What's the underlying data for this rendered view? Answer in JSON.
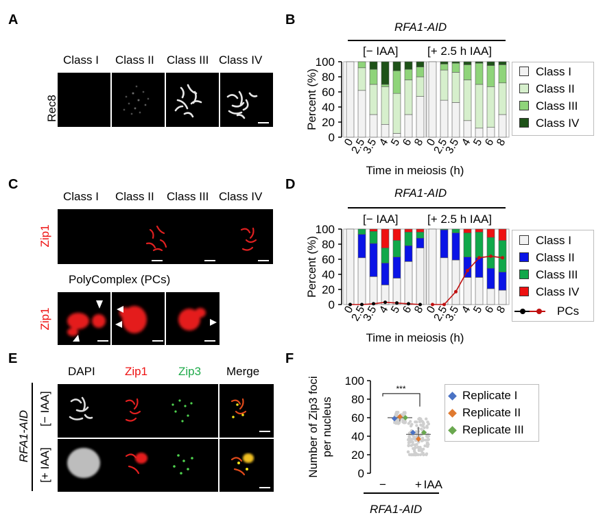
{
  "panels": {
    "A": {
      "letter": "A",
      "columns": [
        "Class I",
        "Class II",
        "Class III",
        "Class IV"
      ],
      "stain": "Rec8"
    },
    "B": {
      "letter": "B",
      "strain": "RFA1-AID",
      "conditions": [
        "[− IAA]",
        "[+ 2.5 h IAA]"
      ]
    },
    "C": {
      "letter": "C",
      "columns": [
        "Class I",
        "Class II",
        "Class III",
        "Class IV"
      ],
      "stain": "Zip1",
      "pc_title": "PolyComplex (PCs)",
      "pc_stain": "Zip1"
    },
    "D": {
      "letter": "D",
      "strain": "RFA1-AID",
      "conditions": [
        "[− IAA]",
        "[+ 2.5 h IAA]"
      ]
    },
    "E": {
      "letter": "E",
      "columns": [
        "DAPI",
        "Zip1",
        "Zip3",
        "Merge"
      ],
      "strain": "RFA1-AID",
      "rows": [
        "[− IAA]",
        "[+ IAA]"
      ]
    },
    "F": {
      "letter": "F",
      "strain": "RFA1-AID",
      "treatment": "IAA",
      "significance": "***"
    }
  },
  "colors": {
    "class1": "#f2f2f2",
    "class2_B": "#d6efcc",
    "class3_B": "#8fd47a",
    "class4_B": "#1e5218",
    "class2_D": "#0a14e6",
    "class3_D": "#10a84a",
    "class4_D": "#ee1111",
    "pcs": "#c01010",
    "zip1": "#ee1c1c",
    "zip3": "#1faa4a",
    "rep1": "#4a72c4",
    "rep2": "#e07a30",
    "rep3": "#6aa84f"
  },
  "chart_data": [
    {
      "id": "B",
      "type": "bar",
      "stacked": true,
      "categories": [
        "0",
        "2.5",
        "3.5",
        "4",
        "5",
        "6",
        "8"
      ],
      "groups": [
        "[− IAA]",
        "[+ 2.5 h IAA]"
      ],
      "xlabel": "Time in meiosis (h)",
      "ylabel": "Percent (%)",
      "ylim": [
        0,
        100
      ],
      "yticks": [
        "0",
        "20",
        "40",
        "60",
        "80",
        "100"
      ],
      "series": [
        {
          "name": "Class I",
          "color_key": "class1",
          "values": [
            [
              100,
              62,
              30,
              17,
              5,
              30,
              54
            ],
            [
              100,
              49,
              46,
              22,
              12,
              13,
              30
            ]
          ]
        },
        {
          "name": "Class II",
          "color_key": "class2_B",
          "values": [
            [
              0,
              30,
              40,
              50,
              53,
              46,
              26
            ],
            [
              0,
              40,
              40,
              54,
              58,
              54,
              42
            ]
          ]
        },
        {
          "name": "Class III",
          "color_key": "class3_B",
          "values": [
            [
              0,
              8,
              20,
              3,
              30,
              14,
              13
            ],
            [
              0,
              8,
              12,
              20,
              28,
              28,
              24
            ]
          ]
        },
        {
          "name": "Class IV",
          "color_key": "class4_B",
          "values": [
            [
              0,
              0,
              10,
              30,
              12,
              10,
              7
            ],
            [
              0,
              3,
              2,
              4,
              2,
              5,
              4
            ]
          ]
        }
      ]
    },
    {
      "id": "D",
      "type": "bar",
      "stacked": true,
      "categories": [
        "0",
        "2.5",
        "3.5",
        "4",
        "5",
        "6",
        "8"
      ],
      "groups": [
        "[− IAA]",
        "[+ 2.5 h IAA]"
      ],
      "xlabel": "Time in meiosis (h)",
      "ylabel": "Percent (%)",
      "ylim": [
        0,
        100
      ],
      "yticks": [
        "0",
        "20",
        "40",
        "60",
        "80",
        "100"
      ],
      "series": [
        {
          "name": "Class I",
          "color_key": "class1",
          "values": [
            [
              100,
              62,
              37,
              26,
              35,
              57,
              75
            ],
            [
              100,
              62,
              59,
              36,
              36,
              21,
              19
            ]
          ]
        },
        {
          "name": "Class II",
          "color_key": "class2_D",
          "values": [
            [
              0,
              31,
              44,
              29,
              28,
              21,
              13
            ],
            [
              0,
              37,
              36,
              27,
              26,
              27,
              24
            ]
          ]
        },
        {
          "name": "Class III",
          "color_key": "class3_D",
          "values": [
            [
              0,
              7,
              16,
              20,
              22,
              18,
              8
            ],
            [
              0,
              1,
              5,
              32,
              34,
              41,
              42
            ]
          ]
        },
        {
          "name": "Class IV",
          "color_key": "class4_D",
          "values": [
            [
              0,
              0,
              3,
              25,
              15,
              4,
              4
            ],
            [
              0,
              0,
              0,
              5,
              4,
              11,
              15
            ]
          ]
        }
      ],
      "lines": [
        {
          "name": "PCs",
          "color_key": "pcs",
          "values": [
            [
              0,
              0,
              1,
              3,
              2,
              1,
              0
            ],
            [
              0,
              0,
              17,
              45,
              62,
              64,
              62
            ]
          ]
        }
      ]
    },
    {
      "id": "F",
      "type": "scatter",
      "categories": [
        "−",
        "+"
      ],
      "xlabel": "IAA",
      "ylabel": "Number of Zip3 foci per nucleus",
      "ylim": [
        0,
        100
      ],
      "yticks": [
        "0",
        "20",
        "40",
        "60",
        "80",
        "100"
      ],
      "series": [
        {
          "name": "Replicate I",
          "color_key": "rep1",
          "values": [
            59,
            44
          ]
        },
        {
          "name": "Replicate II",
          "color_key": "rep2",
          "values": [
            61,
            37
          ]
        },
        {
          "name": "Replicate III",
          "color_key": "rep3",
          "values": [
            60,
            44
          ]
        }
      ],
      "means": [
        60,
        42
      ],
      "sd": [
        4,
        8
      ]
    }
  ]
}
